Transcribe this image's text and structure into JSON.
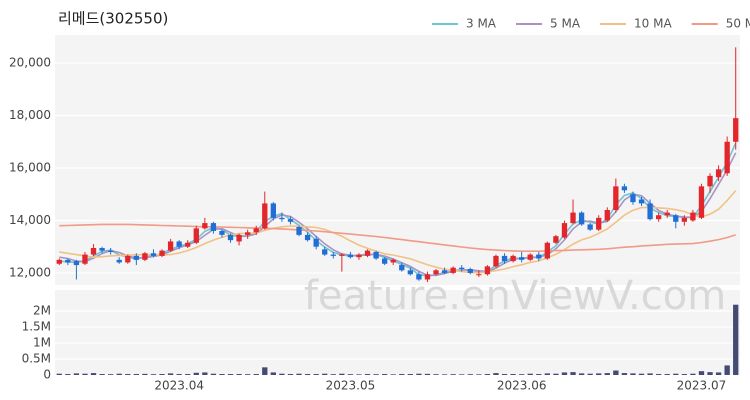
{
  "chart_data": {
    "type": "candlestick",
    "title": "리메드(302550)",
    "watermark": "feature.enViewV.com",
    "categories": [
      null,
      null,
      null,
      null,
      null,
      null,
      null,
      null,
      null,
      null,
      null,
      null,
      null,
      null,
      "2023.04",
      null,
      null,
      null,
      null,
      null,
      null,
      null,
      null,
      null,
      null,
      null,
      null,
      null,
      null,
      null,
      null,
      null,
      null,
      null,
      "2023.05",
      null,
      null,
      null,
      null,
      null,
      null,
      null,
      null,
      null,
      null,
      null,
      null,
      null,
      null,
      null,
      null,
      null,
      null,
      null,
      "2023.06",
      null,
      null,
      null,
      null,
      null,
      null,
      null,
      null,
      null,
      null,
      null,
      null,
      null,
      null,
      null,
      null,
      null,
      null,
      null,
      null,
      "2023.07",
      null,
      null,
      null,
      null
    ],
    "open": [
      12350,
      12500,
      12450,
      12350,
      12700,
      12950,
      12850,
      12500,
      12400,
      12650,
      12500,
      12750,
      12650,
      12850,
      13200,
      13000,
      13150,
      13700,
      13900,
      13600,
      13450,
      13200,
      13450,
      13550,
      13700,
      14650,
      14100,
      14050,
      13750,
      13450,
      13300,
      12900,
      12700,
      12650,
      12700,
      12600,
      12650,
      12800,
      12550,
      12400,
      12300,
      12100,
      11950,
      11750,
      11950,
      12100,
      12000,
      12200,
      12150,
      11950,
      11950,
      12250,
      12650,
      12450,
      12600,
      12500,
      12700,
      12550,
      13150,
      13350,
      13900,
      14300,
      13850,
      13650,
      14000,
      14400,
      15300,
      15000,
      14800,
      14650,
      14050,
      14200,
      14200,
      13950,
      14000,
      14100,
      15300,
      15650,
      15800,
      17000
    ],
    "high": [
      12550,
      12550,
      12500,
      12800,
      13100,
      13000,
      12950,
      12600,
      12700,
      12750,
      12800,
      12900,
      12900,
      13300,
      13250,
      13250,
      13800,
      14100,
      13950,
      13650,
      13500,
      13500,
      13650,
      13800,
      15100,
      14700,
      14300,
      14150,
      13800,
      13550,
      13400,
      13000,
      12800,
      12750,
      12800,
      12750,
      12900,
      12850,
      12600,
      12550,
      12400,
      12200,
      12050,
      12050,
      12150,
      12200,
      12250,
      12300,
      12200,
      12100,
      12300,
      12700,
      12750,
      12700,
      12800,
      12750,
      12800,
      13200,
      13450,
      14000,
      14800,
      14350,
      13900,
      14200,
      14500,
      15600,
      15400,
      15100,
      14900,
      14800,
      14300,
      14400,
      14250,
      14200,
      14400,
      15400,
      15800,
      16100,
      17200,
      20600
    ],
    "low": [
      12300,
      12300,
      11750,
      12300,
      12650,
      12750,
      12700,
      12350,
      12350,
      12300,
      12450,
      12600,
      12600,
      12800,
      12900,
      12950,
      13100,
      13650,
      13500,
      13350,
      13150,
      13050,
      13300,
      13450,
      13650,
      14000,
      13950,
      13850,
      13400,
      13200,
      12900,
      12650,
      12550,
      12050,
      12550,
      12500,
      12600,
      12500,
      12300,
      12300,
      12050,
      11900,
      11700,
      11650,
      11900,
      11950,
      11950,
      12050,
      11950,
      11850,
      11900,
      12200,
      12350,
      12400,
      12400,
      12450,
      12450,
      12500,
      13100,
      13300,
      13850,
      13800,
      13600,
      13600,
      13950,
      14300,
      15050,
      14600,
      14550,
      14000,
      13950,
      14100,
      13700,
      13800,
      13950,
      14050,
      15050,
      15500,
      15700,
      16700
    ],
    "close": [
      12500,
      12400,
      12300,
      12700,
      12950,
      12850,
      12800,
      12400,
      12650,
      12500,
      12750,
      12650,
      12850,
      13200,
      13000,
      13150,
      13700,
      13900,
      13600,
      13450,
      13250,
      13450,
      13550,
      13700,
      14650,
      14100,
      14050,
      13950,
      13450,
      13250,
      13000,
      12700,
      12650,
      12700,
      12600,
      12700,
      12850,
      12550,
      12350,
      12500,
      12100,
      11950,
      11750,
      11950,
      12100,
      12000,
      12200,
      12150,
      12000,
      11950,
      12250,
      12650,
      12450,
      12650,
      12500,
      12700,
      12550,
      13150,
      13400,
      13900,
      14300,
      13850,
      13650,
      14100,
      14400,
      15300,
      15150,
      14700,
      14650,
      14050,
      14200,
      14300,
      13950,
      14100,
      14300,
      15300,
      15700,
      15950,
      17000,
      17900
    ],
    "volume": [
      40000,
      30000,
      50000,
      40000,
      60000,
      30000,
      25000,
      40000,
      30000,
      30000,
      35000,
      25000,
      30000,
      50000,
      30000,
      30000,
      70000,
      80000,
      40000,
      30000,
      30000,
      30000,
      25000,
      30000,
      240000,
      80000,
      40000,
      30000,
      40000,
      30000,
      30000,
      40000,
      25000,
      40000,
      25000,
      20000,
      30000,
      25000,
      30000,
      20000,
      30000,
      30000,
      40000,
      35000,
      25000,
      20000,
      25000,
      20000,
      25000,
      20000,
      30000,
      60000,
      30000,
      30000,
      25000,
      40000,
      30000,
      50000,
      40000,
      80000,
      90000,
      50000,
      40000,
      50000,
      60000,
      140000,
      60000,
      50000,
      40000,
      50000,
      30000,
      30000,
      40000,
      30000,
      40000,
      120000,
      90000,
      80000,
      300000,
      2200000
    ],
    "up_color": "#e3262b",
    "down_color": "#1f6fd6",
    "volume_color": "#454a74",
    "series": [
      {
        "name": "3 MA",
        "color": "#6ec6d1",
        "values": [
          12450,
          12420,
          12400,
          12467,
          12650,
          12833,
          12867,
          12683,
          12617,
          12517,
          12633,
          12633,
          12750,
          12900,
          13017,
          13117,
          13283,
          13583,
          13733,
          13650,
          13433,
          13383,
          13417,
          13567,
          13967,
          14150,
          14267,
          14033,
          13817,
          13550,
          13233,
          12983,
          12783,
          12683,
          12650,
          12667,
          12717,
          12700,
          12583,
          12467,
          12317,
          12183,
          11933,
          11883,
          11933,
          12017,
          12100,
          12117,
          12117,
          12033,
          12067,
          12283,
          12450,
          12583,
          12533,
          12617,
          12583,
          12800,
          13033,
          13483,
          13867,
          14017,
          13933,
          13867,
          14050,
          14600,
          14950,
          15050,
          14833,
          14467,
          14300,
          14183,
          14150,
          14117,
          14117,
          14567,
          15100,
          15650,
          16217,
          16950
        ]
      },
      {
        "name": "5 MA",
        "color": "#a993c4",
        "values": [
          12600,
          12550,
          12450,
          12430,
          12560,
          12740,
          12850,
          12780,
          12650,
          12570,
          12580,
          12630,
          12690,
          12830,
          12960,
          13070,
          13200,
          13430,
          13660,
          13690,
          13540,
          13410,
          13400,
          13490,
          13770,
          14060,
          14210,
          14150,
          13930,
          13680,
          13390,
          13110,
          12880,
          12730,
          12670,
          12660,
          12690,
          12710,
          12640,
          12530,
          12390,
          12250,
          12060,
          11910,
          11910,
          11980,
          12060,
          12110,
          12120,
          12080,
          12050,
          12180,
          12370,
          12520,
          12560,
          12580,
          12600,
          12690,
          12920,
          13260,
          13680,
          13940,
          13980,
          13900,
          13960,
          14330,
          14780,
          15000,
          14940,
          14650,
          14380,
          14240,
          14170,
          14130,
          14120,
          14340,
          14830,
          15380,
          15930,
          16580
        ]
      },
      {
        "name": "10 MA",
        "color": "#f2c186",
        "values": [
          12800,
          12750,
          12700,
          12650,
          12600,
          12620,
          12650,
          12670,
          12680,
          12690,
          12700,
          12700,
          12680,
          12700,
          12760,
          12850,
          12970,
          13120,
          13250,
          13360,
          13450,
          13500,
          13510,
          13520,
          13620,
          13700,
          13760,
          13790,
          13780,
          13760,
          13730,
          13660,
          13530,
          13400,
          13220,
          13060,
          12940,
          12830,
          12730,
          12680,
          12610,
          12540,
          12430,
          12310,
          12220,
          12140,
          12090,
          12050,
          12020,
          12010,
          12030,
          12090,
          12150,
          12240,
          12310,
          12400,
          12460,
          12580,
          12710,
          12890,
          13100,
          13260,
          13360,
          13510,
          13680,
          13930,
          14200,
          14390,
          14490,
          14490,
          14480,
          14460,
          14410,
          14340,
          14210,
          14140,
          14240,
          14430,
          14760,
          15140
        ]
      },
      {
        "name": "50 MA",
        "color": "#f09a87",
        "values": [
          13800,
          13810,
          13820,
          13830,
          13840,
          13850,
          13850,
          13850,
          13850,
          13840,
          13830,
          13820,
          13810,
          13800,
          13790,
          13780,
          13770,
          13760,
          13760,
          13750,
          13740,
          13730,
          13720,
          13710,
          13700,
          13690,
          13680,
          13660,
          13640,
          13620,
          13600,
          13570,
          13540,
          13510,
          13480,
          13450,
          13420,
          13390,
          13350,
          13310,
          13270,
          13230,
          13190,
          13150,
          13110,
          13070,
          13030,
          12990,
          12950,
          12920,
          12890,
          12870,
          12850,
          12840,
          12830,
          12830,
          12830,
          12840,
          12850,
          12860,
          12870,
          12880,
          12890,
          12900,
          12920,
          12950,
          12980,
          13000,
          13030,
          13050,
          13070,
          13090,
          13100,
          13110,
          13120,
          13160,
          13210,
          13270,
          13350,
          13450
        ]
      }
    ],
    "ylim": [
      11540,
      21070
    ],
    "yticks": [
      {
        "value": 12000,
        "label": "12,000"
      },
      {
        "value": 14000,
        "label": "14,000"
      },
      {
        "value": 16000,
        "label": "16,000"
      },
      {
        "value": 18000,
        "label": "18,000"
      },
      {
        "value": 20000,
        "label": "20,000"
      }
    ],
    "volume_ylim": [
      0,
      2660000
    ],
    "volume_yticks": [
      0,
      {
        "value": 500000,
        "label": "0.5M"
      },
      {
        "value": 1000000,
        "label": "1M"
      },
      {
        "value": 1500000,
        "label": "1.5M"
      },
      {
        "value": 2000000,
        "label": "2M"
      }
    ],
    "grid": true,
    "legend": "top-right"
  }
}
